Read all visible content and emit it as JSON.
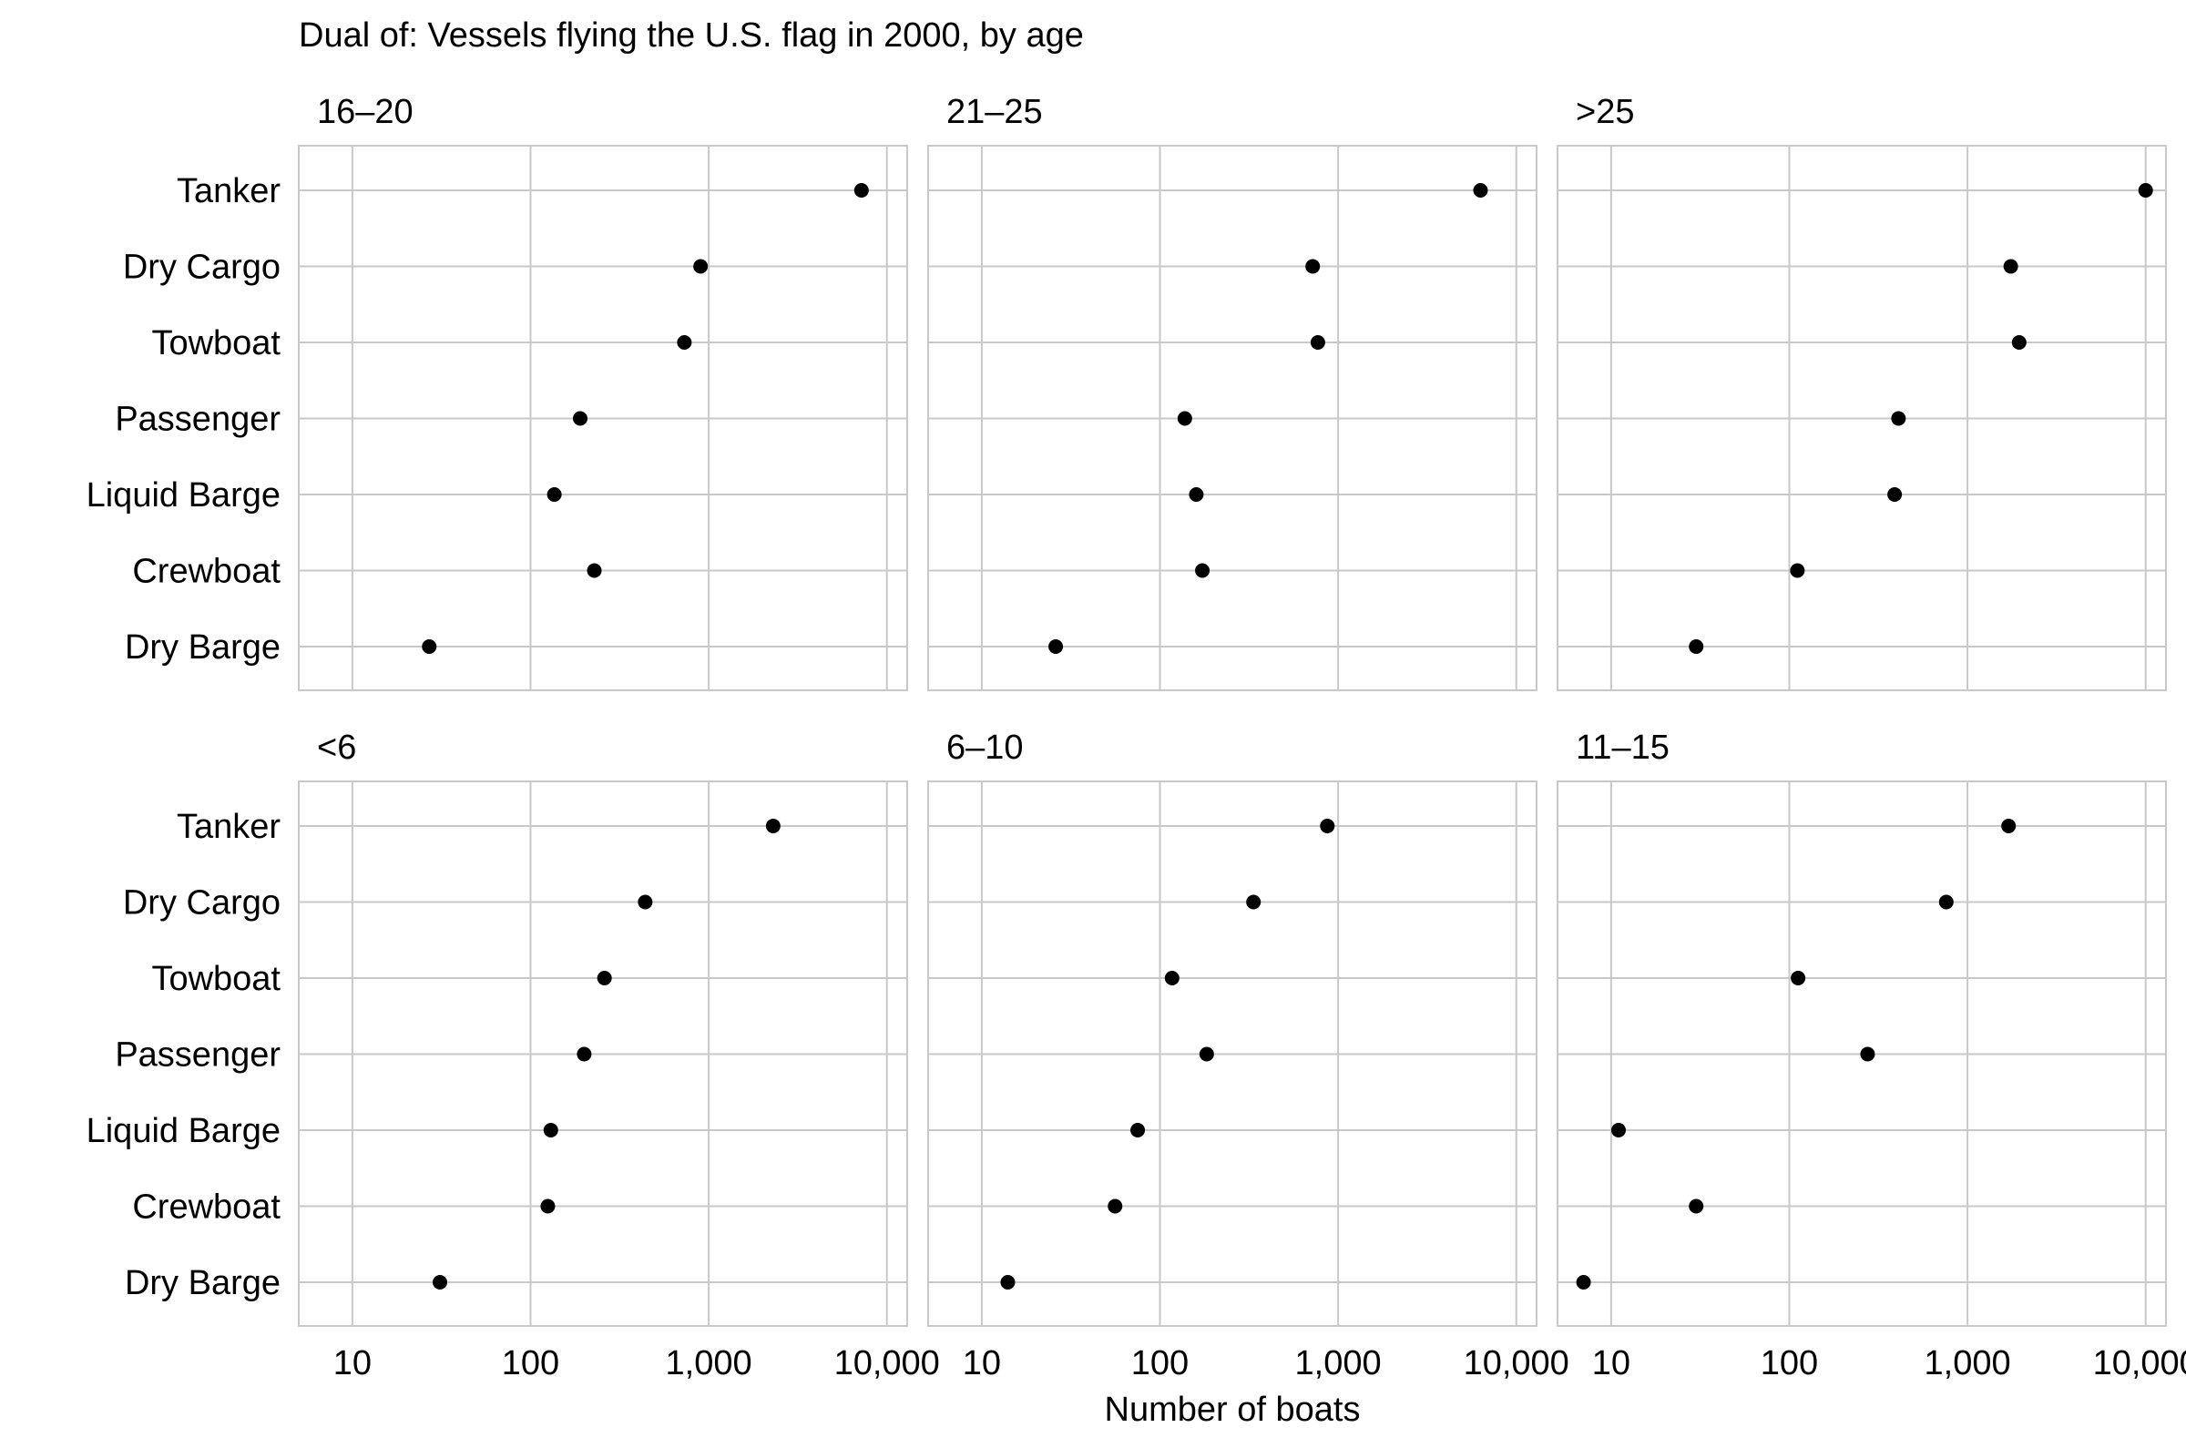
{
  "chart_data": {
    "type": "scatter",
    "title": "Dual of: Vessels flying the U.S. flag in 2000, by age",
    "xlabel": "Number of boats",
    "ylabel": "",
    "x_scale": "log10",
    "xlim": [
      5,
      13000
    ],
    "x_ticks": [
      10,
      100,
      1000,
      10000
    ],
    "x_tick_labels": [
      "10",
      "100",
      "1,000",
      "10,000"
    ],
    "categories": [
      "Tanker",
      "Dry Cargo",
      "Towboat",
      "Passenger",
      "Liquid Barge",
      "Crewboat",
      "Dry Barge"
    ],
    "grid": true,
    "legend": "none",
    "marker_color": "#000000",
    "panels": [
      {
        "label": "16–20",
        "values": [
          7200,
          900,
          730,
          190,
          136,
          228,
          27
        ]
      },
      {
        "label": "21–25",
        "values": [
          6300,
          720,
          770,
          138,
          160,
          173,
          26
        ]
      },
      {
        "label": ">25",
        "values": [
          10000,
          1750,
          1950,
          410,
          390,
          111,
          30
        ]
      },
      {
        "label": "<6",
        "values": [
          2300,
          440,
          260,
          200,
          130,
          125,
          31
        ]
      },
      {
        "label": "6–10",
        "values": [
          870,
          335,
          117,
          183,
          75,
          56,
          14
        ]
      },
      {
        "label": "11–15",
        "values": [
          1700,
          760,
          112,
          275,
          11,
          30,
          7
        ]
      }
    ]
  }
}
